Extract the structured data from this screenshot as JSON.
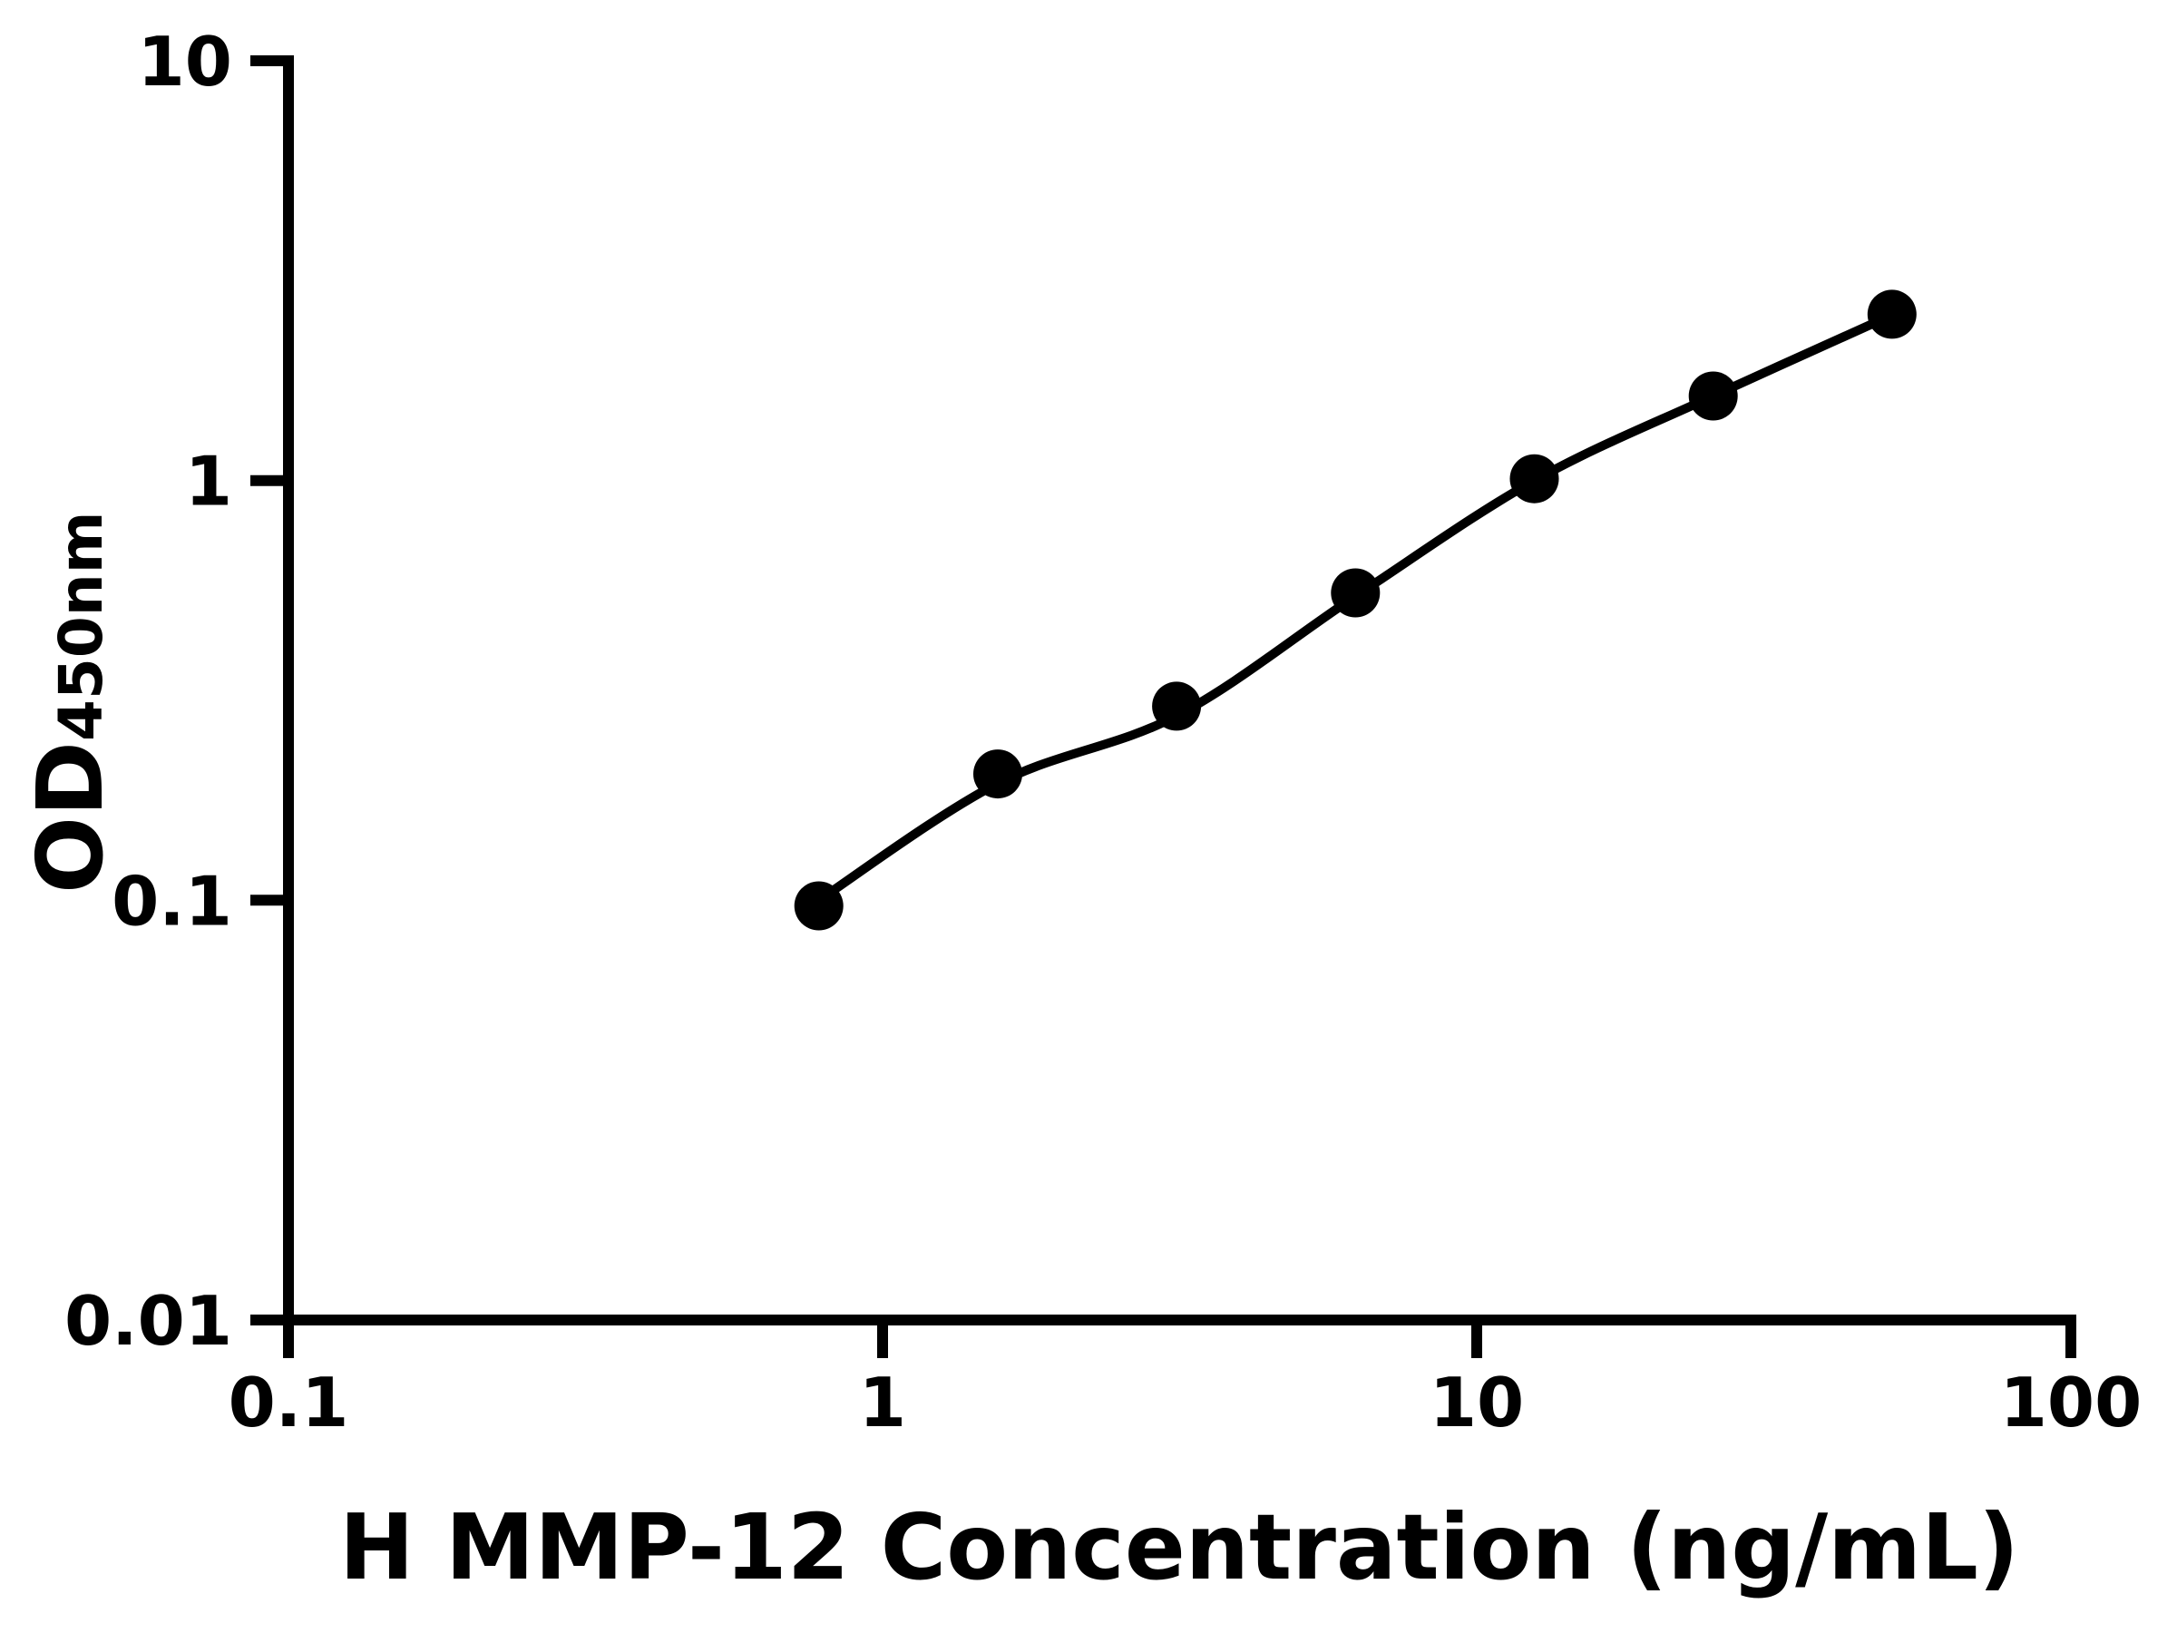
{
  "figure": {
    "background_color": "#ffffff",
    "ink_color": "#000000"
  },
  "chart_data": {
    "type": "scatter",
    "title": "",
    "xlabel": "H MMP-12 Concentration (ng/mL)",
    "ylabel": "OD450nm",
    "ylabel_main": "OD",
    "ylabel_sub": "450nm",
    "x_scale": "log",
    "y_scale": "log",
    "xlim": [
      0.1,
      100
    ],
    "ylim": [
      0.01,
      10
    ],
    "grid": false,
    "legend": false,
    "x_ticks": [
      {
        "v": 0.1,
        "label": "0.1"
      },
      {
        "v": 1,
        "label": "1"
      },
      {
        "v": 10,
        "label": "10"
      },
      {
        "v": 100,
        "label": "100"
      }
    ],
    "y_ticks": [
      {
        "v": 0.01,
        "label": "0.01"
      },
      {
        "v": 0.1,
        "label": "0.1"
      },
      {
        "v": 1,
        "label": "1"
      },
      {
        "v": 10,
        "label": "10"
      }
    ],
    "series": [
      {
        "name": "standard-points",
        "type": "scatter",
        "marker": "filled-circle",
        "color": "#000000",
        "points": [
          {
            "x": 0.781,
            "y": 0.097
          },
          {
            "x": 1.563,
            "y": 0.2
          },
          {
            "x": 3.125,
            "y": 0.29
          },
          {
            "x": 6.25,
            "y": 0.54
          },
          {
            "x": 12.5,
            "y": 1.01
          },
          {
            "x": 25,
            "y": 1.59
          },
          {
            "x": 50,
            "y": 2.49
          }
        ]
      },
      {
        "name": "fitted-curve",
        "type": "line",
        "color": "#000000",
        "points": [
          {
            "x": 0.781,
            "y": 0.1
          },
          {
            "x": 1.563,
            "y": 0.19
          },
          {
            "x": 3.125,
            "y": 0.275
          },
          {
            "x": 6.25,
            "y": 0.53
          },
          {
            "x": 12.5,
            "y": 1.0
          },
          {
            "x": 25,
            "y": 1.59
          },
          {
            "x": 50,
            "y": 2.48
          }
        ]
      }
    ]
  }
}
